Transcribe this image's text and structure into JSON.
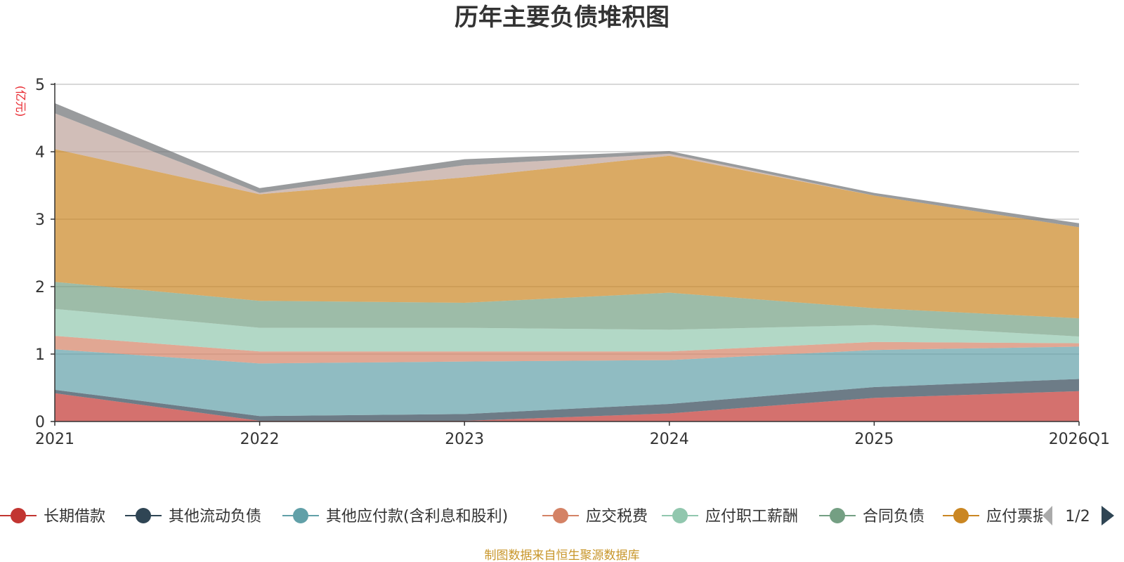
{
  "chart_data": {
    "type": "area",
    "stacked": true,
    "title": "历年主要负债堆积图",
    "unit_label": "(亿元)",
    "categories": [
      "2021",
      "2022",
      "2023",
      "2024",
      "2025",
      "2026Q1"
    ],
    "ylim": [
      0,
      5
    ],
    "yticks": [
      0,
      1,
      2,
      3,
      4,
      5
    ],
    "grid": true,
    "series": [
      {
        "name": "长期借款",
        "color": "#c23531",
        "values": [
          0.42,
          0.01,
          0.01,
          0.12,
          0.35,
          0.45
        ]
      },
      {
        "name": "其他流动负债",
        "color": "#2f4554",
        "values": [
          0.05,
          0.07,
          0.1,
          0.14,
          0.16,
          0.18
        ]
      },
      {
        "name": "其他应付款(含利息和股利)",
        "color": "#61a0a8",
        "values": [
          0.6,
          0.78,
          0.78,
          0.65,
          0.55,
          0.48
        ]
      },
      {
        "name": "应交税费",
        "color": "#d48265",
        "values": [
          0.2,
          0.18,
          0.15,
          0.13,
          0.12,
          0.05
        ]
      },
      {
        "name": "应付职工薪酬",
        "color": "#91c7ae",
        "values": [
          0.4,
          0.35,
          0.35,
          0.32,
          0.25,
          0.1
        ]
      },
      {
        "name": "合同负债",
        "color": "#749f83",
        "values": [
          0.4,
          0.4,
          0.37,
          0.55,
          0.25,
          0.27
        ]
      },
      {
        "name": "应付票据",
        "color": "#ca8622",
        "values": [
          1.97,
          1.58,
          1.86,
          2.03,
          1.67,
          1.35
        ]
      },
      {
        "name": "",
        "color": "#bda29a",
        "values": [
          0.53,
          0.02,
          0.18,
          0.03,
          0.0,
          0.0
        ]
      },
      {
        "name": "",
        "color": "#6e7074",
        "values": [
          0.15,
          0.07,
          0.09,
          0.04,
          0.04,
          0.06
        ]
      }
    ],
    "legend": {
      "placement": "bottom",
      "page": "1/2",
      "visible_series": 7
    }
  },
  "footer": {
    "source": "制图数据来自恒生聚源数据库"
  },
  "colors": {
    "axis": "#333333",
    "grid": "#cccccc",
    "pager_active": "#2f4554",
    "pager_inactive": "#aaaaaa"
  }
}
